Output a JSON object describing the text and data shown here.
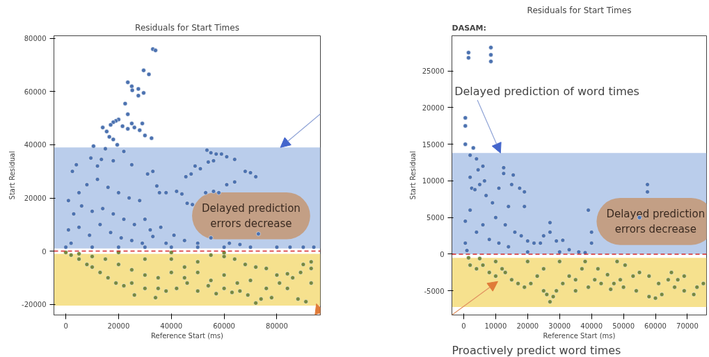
{
  "chart_data": [
    {
      "type": "scatter",
      "title": "Residuals for Start Times",
      "xlabel": "Reference Start (ms)",
      "ylabel": "Start Residual",
      "xlim": [
        -4500,
        96500
      ],
      "ylim": [
        -24000,
        81000
      ],
      "xticks": [
        0,
        20000,
        40000,
        60000,
        80000
      ],
      "yticks": [
        -20000,
        0,
        20000,
        40000,
        60000,
        80000
      ],
      "grid": false,
      "marker": "circle",
      "series": [
        {
          "color": "#4c72b0",
          "x": [
            33000,
            34000,
            29500,
            31500,
            23500,
            25000,
            25200,
            27500,
            29500,
            27500,
            22500,
            23500,
            20000,
            19000,
            18000,
            17000,
            14000,
            29000,
            25000,
            21500,
            23500,
            26000,
            28000,
            30000,
            32500,
            15500,
            16500,
            18000,
            19500,
            10500,
            15000,
            22000,
            9500,
            13500,
            18000,
            4000,
            2500,
            12000,
            25000,
            31000,
            33000,
            53500,
            55000,
            57000,
            59000,
            61000,
            64000,
            54000,
            56000,
            49000,
            51000,
            47500,
            45500,
            68000,
            70000,
            72000,
            61000,
            64000,
            53000,
            56000,
            58000,
            44000,
            46000,
            48000,
            42000,
            38000,
            34500,
            35500,
            1000,
            5000,
            8000,
            12000,
            16000,
            20000,
            24000,
            28000,
            30000,
            3000,
            6000,
            10000,
            14000,
            18000,
            22000,
            26000,
            32000,
            36000,
            41000,
            45000,
            50000,
            55000,
            62000,
            66000,
            73000,
            1000,
            5000,
            9000,
            13000,
            17000,
            21000,
            25000,
            29000,
            33000,
            38000,
            2000,
            0,
            10000,
            20000,
            30000,
            40000,
            50000,
            60000,
            70000,
            80000,
            85000,
            90000,
            94000
          ],
          "values": [
            76000,
            75500,
            68000,
            66500,
            63500,
            62000,
            60500,
            61000,
            59500,
            58500,
            55500,
            51500,
            49500,
            49000,
            48500,
            47500,
            46500,
            48000,
            48000,
            47000,
            46000,
            46500,
            45500,
            43500,
            42500,
            45000,
            43000,
            42000,
            40000,
            39500,
            38500,
            37500,
            35000,
            34500,
            34000,
            32500,
            30000,
            32000,
            32500,
            29000,
            30000,
            38000,
            37000,
            36500,
            36500,
            35500,
            34500,
            33500,
            34000,
            32000,
            31000,
            29000,
            28000,
            30000,
            29500,
            28000,
            25000,
            26000,
            22000,
            22500,
            22000,
            21500,
            18000,
            17500,
            22500,
            22000,
            24500,
            22000,
            19000,
            22000,
            25000,
            27000,
            24000,
            22000,
            20000,
            19000,
            12000,
            14000,
            17000,
            15000,
            16000,
            14000,
            12000,
            10000,
            8000,
            9000,
            6000,
            4000,
            3000,
            5000,
            3000,
            2500,
            6500,
            8000,
            9000,
            6000,
            10000,
            7000,
            5000,
            4000,
            3000,
            5500,
            3000,
            3000,
            1500,
            1500,
            1500,
            1500,
            1500,
            1500,
            1500,
            1500,
            1500,
            1500,
            1500,
            1500
          ]
        },
        {
          "color": "#77883f",
          "x": [
            2000,
            5000,
            8000,
            10000,
            13000,
            16000,
            19000,
            22000,
            26000,
            30000,
            34000,
            38000,
            42000,
            46000,
            50000,
            54000,
            57000,
            60000,
            63000,
            66000,
            69000,
            72000,
            74000,
            78000,
            81000,
            84000,
            88000,
            91000,
            93000,
            86000,
            89000,
            93000,
            93000,
            90000,
            84000,
            80000,
            76000,
            72000,
            68000,
            64000,
            60000,
            55000,
            50000,
            45000,
            40000,
            35000,
            30000,
            25000,
            20000,
            15000,
            10000,
            5000,
            30000,
            40000,
            50000,
            60000,
            70000,
            76000,
            65000,
            55000,
            45000,
            35000,
            25000,
            0,
            20000,
            40000,
            60000
          ],
          "values": [
            -1500,
            -3000,
            -5000,
            -6000,
            -8000,
            -10000,
            -12000,
            -13000,
            -16500,
            -14000,
            -17500,
            -15000,
            -14000,
            -12000,
            -15000,
            -13000,
            -16000,
            -14000,
            -15500,
            -15000,
            -16500,
            -19500,
            -18000,
            -17500,
            -12000,
            -14000,
            -18000,
            -19000,
            -12000,
            -10000,
            -8000,
            -6500,
            -4000,
            -5000,
            -8500,
            -9000,
            -6500,
            -6000,
            -5000,
            -3000,
            -2000,
            -1500,
            -4000,
            -6000,
            -8000,
            -10000,
            -9000,
            -7000,
            -5000,
            -3000,
            -2000,
            -1000,
            -3000,
            -3000,
            -8000,
            -9000,
            -11000,
            -14000,
            -12000,
            -11000,
            -10000,
            -14000,
            -12000,
            -500,
            -500,
            -500,
            -600
          ]
        }
      ],
      "ref_lines": [
        {
          "axis": "y",
          "value": 0,
          "color": "#d62728",
          "line_style": "dashed"
        }
      ],
      "bands": [
        {
          "axis": "y",
          "from": 1000,
          "to": 39000,
          "color": "#aec4e8"
        },
        {
          "axis": "y",
          "from": -20500,
          "to": -1000,
          "color": "#f5dc7a"
        }
      ],
      "annotations": [
        "Delayed prediction errors decrease"
      ]
    },
    {
      "type": "scatter",
      "title": "Residuals for Start Times",
      "xlabel": "Reference Start (ms)",
      "ylabel": "Start Residual",
      "xlim": [
        -3700,
        76000
      ],
      "ylim": [
        -8300,
        29800
      ],
      "xticks": [
        0,
        10000,
        20000,
        30000,
        40000,
        50000,
        60000,
        70000
      ],
      "yticks": [
        -5000,
        0,
        5000,
        10000,
        15000,
        20000,
        25000
      ],
      "grid": false,
      "marker": "circle",
      "series": [
        {
          "color": "#4c72b0",
          "x": [
            1500,
            1500,
            8500,
            8500,
            8500,
            500,
            500,
            500,
            500,
            500,
            2000,
            3000,
            4000,
            4500,
            6000,
            6500,
            5000,
            2000,
            2500,
            3500,
            7000,
            9000,
            11000,
            12500,
            12500,
            14000,
            15500,
            15000,
            17500,
            19000,
            19000,
            10000,
            13000,
            16000,
            18000,
            20000,
            22000,
            24000,
            25000,
            27000,
            27000,
            29000,
            31000,
            33000,
            36000,
            38000,
            39000,
            40000,
            40000,
            57500,
            57500,
            55000,
            2000,
            4000,
            6000,
            8000,
            11000,
            14000,
            1000,
            20000,
            30000
          ],
          "values": [
            27500,
            26800,
            28200,
            27200,
            26300,
            18600,
            17500,
            15000,
            4500,
            1500,
            13500,
            14500,
            13000,
            11500,
            12000,
            10000,
            9500,
            10500,
            9000,
            8800,
            8000,
            7000,
            9000,
            11800,
            11000,
            6500,
            10800,
            9500,
            9000,
            8500,
            6500,
            5000,
            4000,
            3000,
            2500,
            1800,
            1500,
            1500,
            2500,
            4300,
            3000,
            1800,
            1900,
            600,
            300,
            200,
            6000,
            3000,
            1500,
            9500,
            8500,
            5000,
            6000,
            3000,
            4000,
            2000,
            1500,
            1000,
            500,
            300,
            300
          ]
        },
        {
          "color": "#77883f",
          "x": [
            1500,
            2000,
            4000,
            6000,
            8000,
            10000,
            12000,
            13000,
            15000,
            17000,
            19000,
            21000,
            23000,
            25000,
            26000,
            27000,
            28000,
            29000,
            31000,
            33000,
            35000,
            37000,
            38000,
            39000,
            41000,
            42000,
            43000,
            45000,
            46000,
            47000,
            48000,
            49000,
            50000,
            50500,
            53000,
            54000,
            55000,
            58000,
            58000,
            60000,
            61000,
            62000,
            64000,
            65000,
            66000,
            67000,
            69000,
            69000,
            72000,
            73000,
            75000,
            20000,
            30000,
            10000,
            5000,
            25000,
            35000
          ],
          "values": [
            -500,
            -1500,
            -2000,
            -1500,
            -2500,
            -1000,
            -2000,
            -2500,
            -3500,
            -4000,
            -4500,
            -4000,
            -3000,
            -5000,
            -5500,
            -6500,
            -5800,
            -5000,
            -4000,
            -3000,
            -3500,
            -2000,
            -1000,
            -4500,
            -3500,
            -2000,
            -4000,
            -2800,
            -4800,
            -4000,
            -1000,
            -3500,
            -4500,
            -1500,
            -3000,
            -5000,
            -2500,
            -3000,
            -5800,
            -6000,
            -4000,
            -5500,
            -3500,
            -2500,
            -4500,
            -3500,
            -3000,
            -5000,
            -5500,
            -4500,
            -4000,
            -1000,
            -1000,
            -3000,
            -600,
            -2000,
            -5000
          ]
        }
      ],
      "ref_lines": [
        {
          "axis": "y",
          "value": 0,
          "color": "#d62728",
          "line_style": "dashed"
        }
      ],
      "bands": [
        {
          "axis": "y",
          "from": 0,
          "to": 13800,
          "color": "#aec4e8"
        },
        {
          "axis": "y",
          "from": -7200,
          "to": -500,
          "color": "#f5dc7a"
        }
      ],
      "annotations": [
        "DASAM:",
        "Delayed prediction errors decrease",
        {
          "text": "Delayed prediction of word times",
          "x": 11500,
          "y": 13800
        },
        "Proactively predict word times"
      ]
    }
  ]
}
